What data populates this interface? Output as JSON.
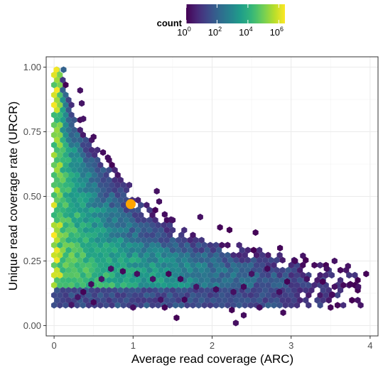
{
  "chart_data": {
    "type": "hexbin",
    "xlabel": "Average read coverage (ARC)",
    "ylabel": "Unique read coverage rate (URCR)",
    "xlim": [
      -0.1,
      4.1
    ],
    "ylim": [
      -0.04,
      1.04
    ],
    "x_ticks": [
      0,
      1,
      2,
      3,
      4
    ],
    "x_tick_labels": [
      "0",
      "1",
      "2",
      "3",
      "4"
    ],
    "y_ticks": [
      0.0,
      0.25,
      0.5,
      0.75,
      1.0
    ],
    "y_tick_labels": [
      "0.00",
      "0.25",
      "0.50",
      "0.75",
      "1.00"
    ],
    "grid": true,
    "legend": {
      "title": "count",
      "position": "top",
      "scale": "log10",
      "colormap": "viridis",
      "range_log10": [
        0,
        6.4
      ],
      "ticks_log10": [
        0,
        2,
        4,
        6
      ],
      "tick_base": "10",
      "tick_exponents": [
        "0",
        "2",
        "4",
        "6"
      ]
    },
    "highlight_point": {
      "x": 0.97,
      "y": 0.47,
      "color": "#FFA500"
    },
    "density_band": {
      "description_x_at_y": [
        [
          1.0,
          0.06
        ],
        [
          0.75,
          0.4
        ],
        [
          0.5,
          1.1
        ],
        [
          0.35,
          1.8
        ],
        [
          0.28,
          2.8
        ],
        [
          0.25,
          3.3
        ],
        [
          0.2,
          3.9
        ]
      ],
      "log10_count_range": [
        0,
        6.4
      ]
    },
    "scattered_low_count_bins": [
      [
        0.33,
        0.91
      ],
      [
        0.35,
        0.86
      ],
      [
        0.37,
        0.8
      ],
      [
        0.5,
        0.73
      ],
      [
        0.62,
        0.67
      ],
      [
        0.68,
        0.65
      ],
      [
        1.3,
        0.52
      ],
      [
        1.33,
        0.48
      ],
      [
        1.4,
        0.43
      ],
      [
        1.48,
        0.41
      ],
      [
        1.85,
        0.42
      ],
      [
        2.1,
        0.38
      ],
      [
        2.22,
        0.37
      ],
      [
        2.55,
        0.36
      ],
      [
        2.86,
        0.3
      ],
      [
        3.15,
        0.27
      ],
      [
        3.05,
        0.25
      ],
      [
        3.45,
        0.22
      ],
      [
        3.55,
        0.25
      ],
      [
        3.72,
        0.23
      ],
      [
        3.95,
        0.2
      ],
      [
        3.75,
        0.16
      ],
      [
        3.55,
        0.15
      ],
      [
        3.4,
        0.17
      ],
      [
        3.52,
        0.12
      ],
      [
        3.85,
        0.15
      ],
      [
        3.2,
        0.18
      ],
      [
        2.95,
        0.17
      ],
      [
        2.7,
        0.22
      ],
      [
        2.5,
        0.2
      ],
      [
        2.4,
        0.15
      ],
      [
        2.27,
        0.13
      ],
      [
        2.05,
        0.14
      ],
      [
        1.8,
        0.15
      ],
      [
        1.6,
        0.18
      ],
      [
        1.45,
        0.2
      ],
      [
        1.25,
        0.18
      ],
      [
        1.05,
        0.2
      ],
      [
        0.87,
        0.21
      ],
      [
        0.72,
        0.22
      ],
      [
        0.6,
        0.18
      ],
      [
        0.47,
        0.16
      ],
      [
        0.37,
        0.13
      ],
      [
        0.3,
        0.11
      ],
      [
        0.22,
        0.08
      ],
      [
        0.5,
        0.09
      ],
      [
        1.35,
        0.1
      ],
      [
        1.4,
        0.07
      ],
      [
        1.0,
        0.07
      ],
      [
        1.55,
        0.03
      ],
      [
        2.6,
        0.07
      ],
      [
        2.85,
        0.13
      ],
      [
        2.25,
        0.06
      ],
      [
        2.4,
        0.04
      ],
      [
        2.3,
        0.01
      ],
      [
        3.5,
        0.07
      ],
      [
        2.9,
        0.05
      ],
      [
        1.65,
        0.1
      ]
    ]
  }
}
